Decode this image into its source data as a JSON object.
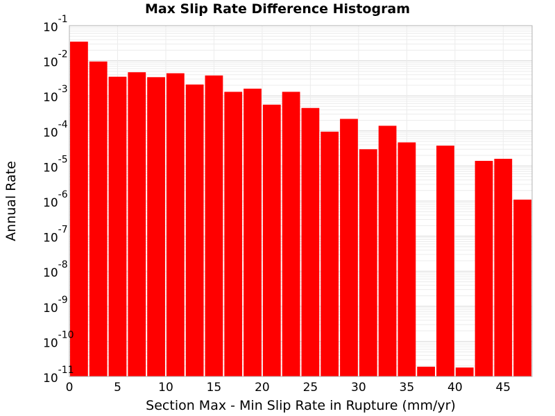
{
  "chart_data": {
    "type": "bar",
    "title": "Max Slip Rate Difference Histogram",
    "xlabel": "Section Max - Min Slip Rate in Rupture (mm/yr)",
    "ylabel": "Annual Rate",
    "xlim": [
      0,
      48
    ],
    "ylim": [
      1e-11,
      0.1
    ],
    "y_scale": "log",
    "x_ticks": [
      0,
      5,
      10,
      15,
      20,
      25,
      30,
      35,
      40,
      45
    ],
    "y_ticks": [
      {
        "value": 1e-11,
        "base": "10",
        "exp": "-11"
      },
      {
        "value": 1e-10,
        "base": "10",
        "exp": "-10"
      },
      {
        "value": 1e-09,
        "base": "10",
        "exp": "-9"
      },
      {
        "value": 1e-08,
        "base": "10",
        "exp": "-8"
      },
      {
        "value": 1e-07,
        "base": "10",
        "exp": "-7"
      },
      {
        "value": 1e-06,
        "base": "10",
        "exp": "-6"
      },
      {
        "value": 1e-05,
        "base": "10",
        "exp": "-5"
      },
      {
        "value": 0.0001,
        "base": "10",
        "exp": "-4"
      },
      {
        "value": 0.001,
        "base": "10",
        "exp": "-3"
      },
      {
        "value": 0.01,
        "base": "10",
        "exp": "-2"
      },
      {
        "value": 0.1,
        "base": "10",
        "exp": "-1"
      }
    ],
    "bin_width": 2,
    "bins": [
      {
        "x": 1,
        "y": 0.035
      },
      {
        "x": 3,
        "y": 0.0095
      },
      {
        "x": 5,
        "y": 0.0035
      },
      {
        "x": 7,
        "y": 0.0047
      },
      {
        "x": 9,
        "y": 0.0034
      },
      {
        "x": 11,
        "y": 0.0044
      },
      {
        "x": 13,
        "y": 0.0021
      },
      {
        "x": 15,
        "y": 0.0038
      },
      {
        "x": 17,
        "y": 0.0013
      },
      {
        "x": 19,
        "y": 0.0016
      },
      {
        "x": 21,
        "y": 0.00056
      },
      {
        "x": 23,
        "y": 0.0013
      },
      {
        "x": 25,
        "y": 0.00045
      },
      {
        "x": 27,
        "y": 9.5e-05
      },
      {
        "x": 29,
        "y": 0.00022
      },
      {
        "x": 31,
        "y": 3e-05
      },
      {
        "x": 33,
        "y": 0.00014
      },
      {
        "x": 35,
        "y": 4.7e-05
      },
      {
        "x": 37,
        "y": 1.9e-11
      },
      {
        "x": 39,
        "y": 3.8e-05
      },
      {
        "x": 41,
        "y": 1.8e-11
      },
      {
        "x": 43,
        "y": 1.4e-05
      },
      {
        "x": 45,
        "y": 1.6e-05
      },
      {
        "x": 47,
        "y": 1.1e-06
      }
    ],
    "bar_color": "#ff0000",
    "grid": true,
    "legend": "none"
  }
}
